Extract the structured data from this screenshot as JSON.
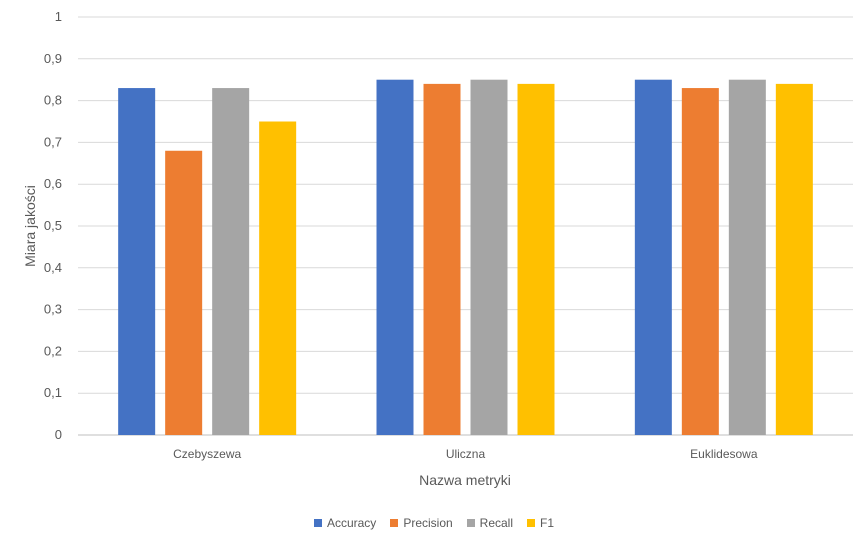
{
  "chart_data": {
    "type": "bar",
    "title": "",
    "xlabel": "Nazwa metryki",
    "ylabel": "Miara jakości",
    "ylim": [
      0,
      1
    ],
    "yticks": [
      "0",
      "0,1",
      "0,2",
      "0,3",
      "0,4",
      "0,5",
      "0,6",
      "0,7",
      "0,8",
      "0,9",
      "1"
    ],
    "categories": [
      "Czebyszewa",
      "Uliczna",
      "Euklidesowa"
    ],
    "series": [
      {
        "name": "Accuracy",
        "color": "#4472C4",
        "values": [
          0.83,
          0.85,
          0.85
        ]
      },
      {
        "name": "Precision",
        "color": "#ED7D31",
        "values": [
          0.68,
          0.84,
          0.83
        ]
      },
      {
        "name": "Recall",
        "color": "#A5A5A5",
        "values": [
          0.83,
          0.85,
          0.85
        ]
      },
      {
        "name": "F1",
        "color": "#FFC000",
        "values": [
          0.75,
          0.84,
          0.84
        ]
      }
    ],
    "grid": true,
    "legend_position": "bottom"
  }
}
